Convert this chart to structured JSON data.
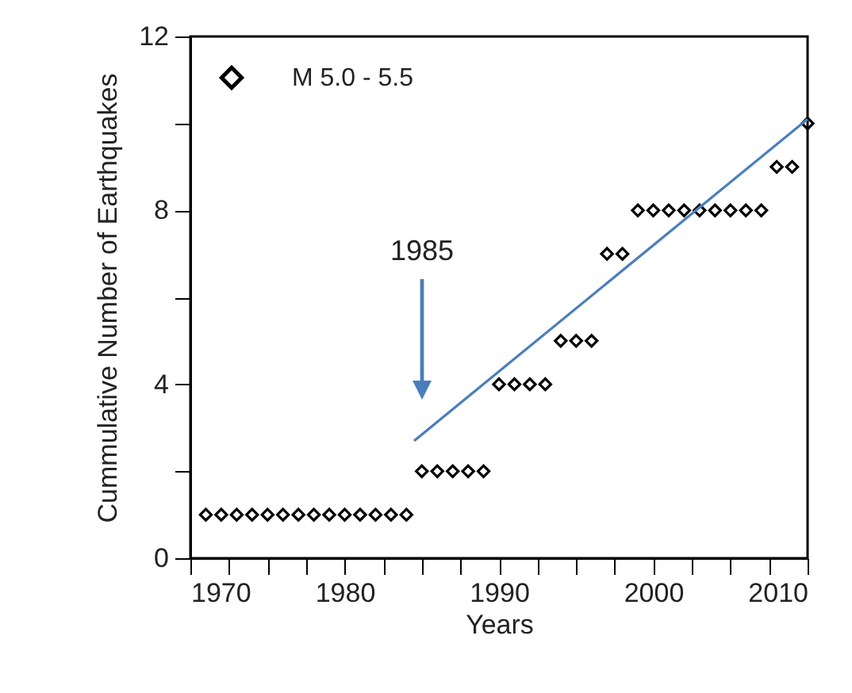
{
  "chart_data": {
    "type": "scatter",
    "xlabel": "Years",
    "ylabel": "Cummulative Number of Earthquakes",
    "xlim": [
      1970,
      2010
    ],
    "ylim": [
      0,
      12
    ],
    "xticks": [
      1970,
      {
        "value": 1972.5,
        "label": null
      },
      {
        "value": 1975,
        "label": null
      },
      {
        "value": 1977.5,
        "label": null
      },
      1980,
      {
        "value": 1982.5,
        "label": null
      },
      {
        "value": 1985,
        "label": null
      },
      {
        "value": 1987.5,
        "label": null
      },
      1990,
      {
        "value": 1992.5,
        "label": null
      },
      {
        "value": 1995,
        "label": null
      },
      {
        "value": 1997.5,
        "label": null
      },
      2000,
      {
        "value": 2002.5,
        "label": null
      },
      {
        "value": 2005,
        "label": null
      },
      {
        "value": 2007.5,
        "label": null
      },
      2010
    ],
    "yticks": [
      0,
      {
        "value": 2,
        "label": null
      },
      4,
      {
        "value": 6,
        "label": null
      },
      8,
      {
        "value": 10,
        "label": null
      },
      12
    ],
    "series": [
      {
        "name": "M 5.0 - 5.5",
        "color": "#000000",
        "marker": "diamond",
        "x": [
          1971,
          1972,
          1973,
          1974,
          1975,
          1976,
          1977,
          1978,
          1979,
          1980,
          1981,
          1982,
          1983,
          1984,
          1985,
          1986,
          1987,
          1988,
          1989,
          1990,
          1991,
          1992,
          1993,
          1994,
          1995,
          1996,
          1997,
          1998,
          1999,
          2000,
          2001,
          2002,
          2003,
          2004,
          2005,
          2006,
          2007,
          2008,
          2009,
          2010
        ],
        "values": [
          1,
          1,
          1,
          1,
          1,
          1,
          1,
          1,
          1,
          1,
          1,
          1,
          1,
          1,
          2,
          2,
          2,
          2,
          2,
          4,
          4,
          4,
          4,
          5,
          5,
          5,
          7,
          7,
          8,
          8,
          8,
          8,
          8,
          8,
          8,
          8,
          8,
          9,
          9,
          10
        ]
      },
      {
        "type": "line",
        "color": "#4a7ebb",
        "x": [
          1984.5,
          2010
        ],
        "values": [
          2.7,
          10.1
        ]
      }
    ],
    "annotations": [
      "1985"
    ],
    "legend": "top left",
    "grid": false
  }
}
